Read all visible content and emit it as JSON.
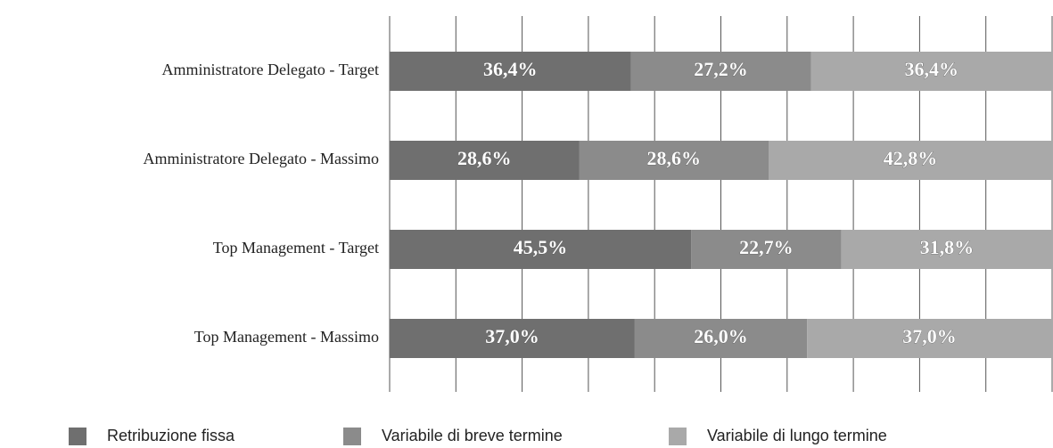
{
  "chart_data": {
    "type": "stacked-bar-horizontal",
    "categories": [
      "Amministratore Delegato - Target",
      "Amministratore Delegato - Massimo",
      "Top Management - Target",
      "Top Management - Massimo"
    ],
    "series": [
      {
        "name": "Retribuzione fissa",
        "color": "#6f6f6f",
        "values": [
          36.4,
          28.6,
          45.5,
          37.0
        ],
        "value_labels": [
          "36,4%",
          "28,6%",
          "45,5%",
          "37,0%"
        ]
      },
      {
        "name": "Variabile di breve termine",
        "color": "#8b8b8b",
        "values": [
          27.2,
          28.6,
          22.7,
          26.0
        ],
        "value_labels": [
          "27,2%",
          "28,6%",
          "22,7%",
          "26,0%"
        ]
      },
      {
        "name": "Variabile di lungo termine",
        "color": "#a9a9a9",
        "values": [
          36.4,
          42.8,
          31.8,
          37.0
        ],
        "value_labels": [
          "36,4%",
          "42,8%",
          "31,8%",
          "37,0%"
        ]
      }
    ],
    "xlim": [
      0,
      100
    ],
    "xticks": [
      0,
      10,
      20,
      30,
      40,
      50,
      60,
      70,
      80,
      90,
      100
    ],
    "grid": true,
    "legend": "bottom"
  }
}
